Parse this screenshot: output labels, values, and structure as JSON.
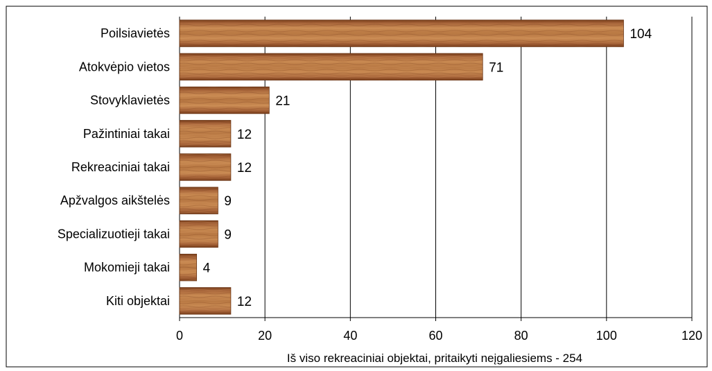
{
  "chart_data": {
    "type": "bar",
    "orientation": "horizontal",
    "title": "",
    "xlabel": "Iš viso rekreaciniai objektai, pritaikyti neįgaliesiems - 254",
    "ylabel": "",
    "categories": [
      "Poilsiavietės",
      "Atokvėpio vietos",
      "Stovyklavietės",
      "Pažintiniai takai",
      "Rekreaciniai takai",
      "Apžvalgos aikštelės",
      "Specializuotieji takai",
      "Mokomieji takai",
      "Kiti objektai"
    ],
    "values": [
      104,
      71,
      21,
      12,
      12,
      9,
      9,
      4,
      12
    ],
    "xlim": [
      0,
      120
    ],
    "xticks": [
      0,
      20,
      40,
      60,
      80,
      100,
      120
    ],
    "grid": "vertical",
    "legend": "none",
    "bar_fill": "wood texture",
    "colors": {
      "bar_light": "#c98a52",
      "bar_mid": "#a8653a",
      "bar_dark": "#7a3f1c",
      "bar_edge": "#6a3616",
      "grid": "#000000",
      "frame": "#000000"
    }
  }
}
